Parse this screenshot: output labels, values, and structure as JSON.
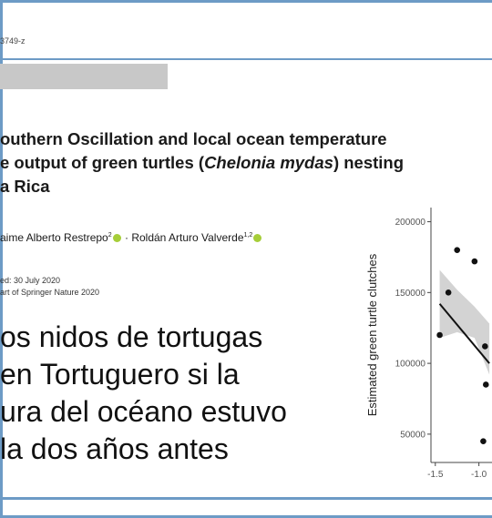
{
  "header": {
    "doi": "3749-z"
  },
  "paper": {
    "title_line1": "outhern Oscillation and local ocean temperature",
    "title_line2_pre": "e output of green turtles (",
    "title_line2_species": "Chelonia mydas",
    "title_line2_post": ") nesting",
    "title_line3": "a Rica",
    "author1": "aime Alberto Restrepo",
    "author1_sup": "2",
    "author_sep": " · ",
    "author2": "Roldán Arturo Valverde",
    "author2_sup": "1,2",
    "date_line": "ed: 30 July 2020",
    "copyright_line": "art of Springer Nature 2020"
  },
  "overlay_text": [
    "os nidos de tortugas",
    "en Tortuguero si la",
    "ura del océano estuvo",
    "la dos años antes"
  ],
  "chart_data": {
    "type": "scatter",
    "ylabel": "Estimated green turtle clutches",
    "xlabel": "",
    "x_ticks": [
      "-1.5",
      "-1.0"
    ],
    "y_ticks": [
      "50000",
      "100000",
      "150000",
      "200000"
    ],
    "ylim": [
      30000,
      210000
    ],
    "xlim": [
      -1.55,
      -0.85
    ],
    "points": [
      {
        "x": -1.45,
        "y": 120000
      },
      {
        "x": -1.35,
        "y": 150000
      },
      {
        "x": -1.25,
        "y": 180000
      },
      {
        "x": -1.05,
        "y": 172000
      },
      {
        "x": -0.93,
        "y": 112000
      },
      {
        "x": -0.92,
        "y": 85000
      },
      {
        "x": -0.95,
        "y": 45000
      }
    ],
    "fit_line": {
      "x": [
        -1.45,
        -0.88
      ],
      "y": [
        142000,
        100000
      ]
    },
    "confidence_band": {
      "x": [
        -1.45,
        -1.25,
        -1.05,
        -0.88
      ],
      "upper": [
        166000,
        152000,
        140000,
        128000
      ],
      "lower": [
        118000,
        122000,
        118000,
        92000
      ]
    }
  }
}
